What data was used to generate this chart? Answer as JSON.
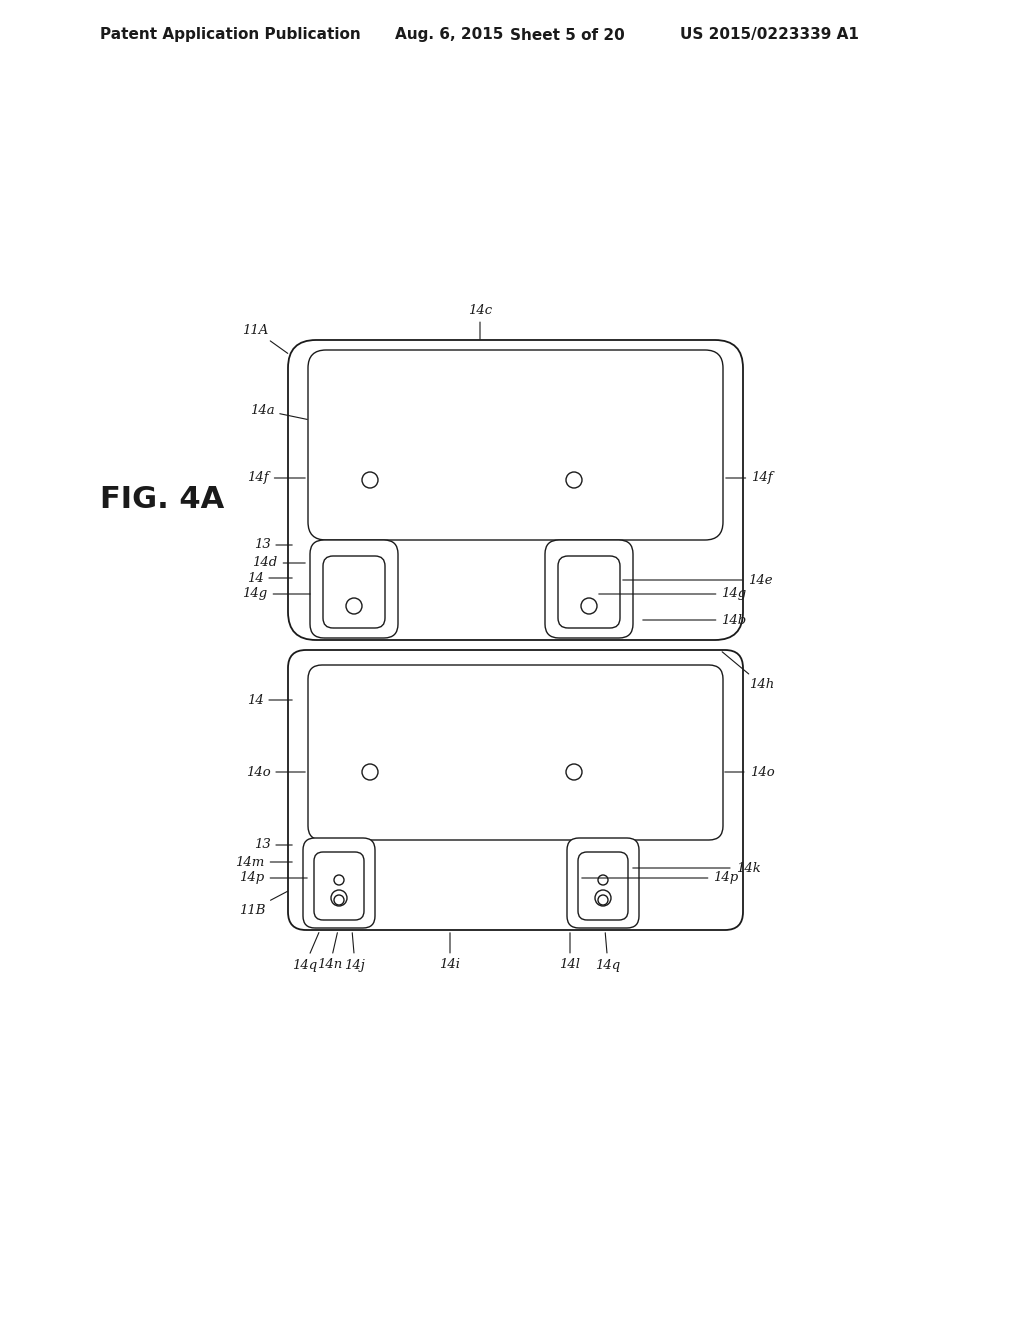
{
  "bg_color": "#ffffff",
  "line_color": "#1a1a1a",
  "header_text": "Patent Application Publication",
  "header_date": "Aug. 6, 2015",
  "header_sheet": "Sheet 5 of 20",
  "header_patent": "US 2015/0223339 A1",
  "fig_label": "FIG. 4A",
  "title_fontsize": 11,
  "label_fontsize": 9.5
}
